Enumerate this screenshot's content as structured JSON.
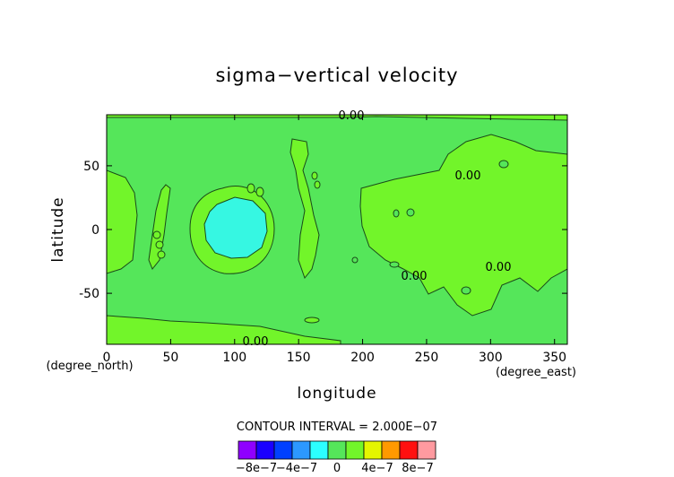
{
  "chart_data": {
    "type": "contour",
    "title": "sigma−vertical velocity",
    "xlabel": "longitude",
    "ylabel": "latitude",
    "x_unit": "(degree_east)",
    "y_unit": "(degree_north)",
    "xlim": [
      0,
      360
    ],
    "ylim": [
      -90,
      90
    ],
    "x_ticks": [
      0,
      50,
      100,
      150,
      200,
      250,
      300,
      350
    ],
    "y_ticks": [
      -50,
      0,
      50
    ],
    "contour_interval_text": "CONTOUR INTERVAL = 2.000E−07",
    "contour_labels": [
      "0.00",
      "0.00",
      "0.00",
      "0.00",
      "0.00"
    ],
    "fill_colors": {
      "background_level": "#55e65a",
      "positive_level": "#72f52a",
      "negative_level": "#36f7e2"
    },
    "colorbar": {
      "colors": [
        "#8f00ff",
        "#1a00ff",
        "#0040ff",
        "#2c98ff",
        "#2cffff",
        "#55e65a",
        "#72f52a",
        "#e4f500",
        "#ff9900",
        "#ff1010",
        "#ff9aa0"
      ],
      "labels": [
        "−8e−7",
        "−4e−7",
        "0",
        "4e−7",
        "8e−7"
      ]
    }
  }
}
